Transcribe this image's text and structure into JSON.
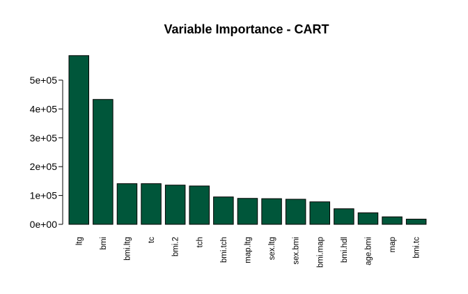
{
  "chart_data": {
    "type": "bar",
    "title": "Variable Importance - CART",
    "xlabel": "",
    "ylabel": "",
    "categories": [
      "ltg",
      "bmi",
      "bmi.ltg",
      "tc",
      "bmi.2",
      "tch",
      "bmi.tch",
      "map.ltg",
      "sex.ltg",
      "sex.bmi",
      "bmi.map",
      "bmi.hdl",
      "age.bmi",
      "map",
      "bmi.tc"
    ],
    "values": [
      585000,
      433000,
      141000,
      141000,
      136000,
      133000,
      95000,
      90000,
      89000,
      87000,
      78000,
      54000,
      40000,
      26000,
      18000
    ],
    "ylim": [
      0,
      600000
    ],
    "yticks": [
      0,
      100000,
      200000,
      300000,
      400000,
      500000
    ],
    "ytick_labels": [
      "0e+00",
      "1e+05",
      "2e+05",
      "3e+05",
      "4e+05",
      "5e+05"
    ],
    "grid": false,
    "legend": "none",
    "bar_color": "#00563A"
  }
}
